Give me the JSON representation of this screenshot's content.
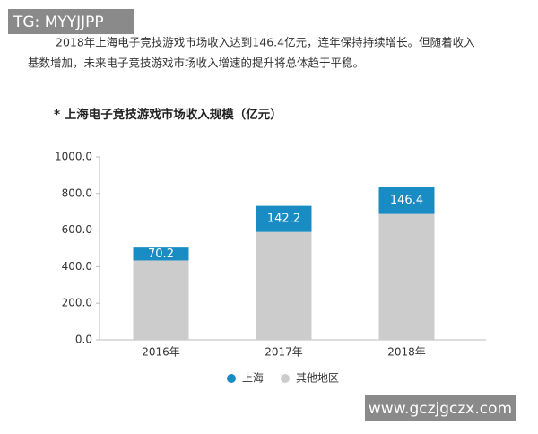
{
  "watermark_top": "TG: MYYJJPP",
  "paragraph": [
    "2018年上海电子竞技游戏市场收入达到146.4亿元，连年保持持续增长。但随着收入",
    "基数增加，未来电子竞技游戏市场收入增速的提升将总体趋于平稳。"
  ],
  "watermark_bottom": "www.gczjgczx.com",
  "chart_data": {
    "type": "bar",
    "stacked": true,
    "title": "* 上海电子竞技游戏市场收入规模（亿元）",
    "categories": [
      "2016年",
      "2017年",
      "2018年"
    ],
    "series": [
      {
        "name": "其他地区",
        "color": "#cccccc",
        "values": [
          434,
          590,
          688
        ]
      },
      {
        "name": "上海",
        "color": "#1a8cc4",
        "values": [
          70.2,
          142.2,
          146.4
        ]
      }
    ],
    "ylim": [
      0,
      1000
    ],
    "yticks": [
      {
        "value": 0,
        "label": "0.0"
      },
      {
        "value": 200,
        "label": "200.0"
      },
      {
        "value": 400,
        "label": "400.0"
      },
      {
        "value": 600,
        "label": "600.0"
      },
      {
        "value": 800,
        "label": "800.0"
      },
      {
        "value": 1000,
        "label": "1000.0"
      }
    ],
    "legend_order": [
      1,
      0
    ]
  }
}
